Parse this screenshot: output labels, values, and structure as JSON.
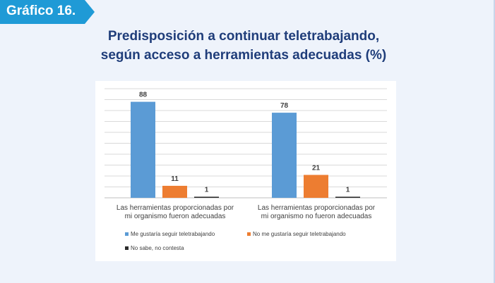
{
  "badge": {
    "label": "Gráfico 16."
  },
  "title": {
    "line1": "Predisposición a continuar teletrabajando,",
    "line2": "según acceso a herramientas adecuadas (%)"
  },
  "colors": {
    "badge": "#1f9ad6",
    "title": "#1f3d7a",
    "series": [
      "#5b9bd5",
      "#ed7d31",
      "#2b2b2b"
    ]
  },
  "chart_data": {
    "type": "bar",
    "categories": [
      [
        "Las herramientas proporcionadas por",
        "mi organismo fueron adecuadas"
      ],
      [
        "Las herramientas proporcionadas por",
        "mi organismo no fueron adecuadas"
      ]
    ],
    "series": [
      {
        "name": "Me gustaría seguir teletrabajando",
        "values": [
          88,
          78
        ]
      },
      {
        "name": "No me gustaría seguir teletrabajando",
        "values": [
          11,
          21
        ]
      },
      {
        "name": "No sabe, no contesta",
        "values": [
          1,
          1
        ]
      }
    ],
    "ylim": [
      0,
      100
    ],
    "grid": true,
    "legend_position": "bottom",
    "data_labels": true
  }
}
